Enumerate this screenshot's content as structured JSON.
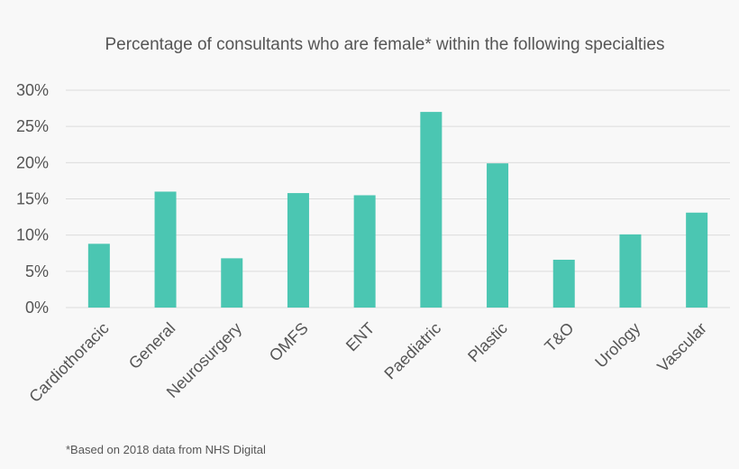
{
  "chart_data": {
    "type": "bar",
    "title": "Percentage of consultants who are female* within the following specialties",
    "categories": [
      "Cardiothoracic",
      "General",
      "Neurosurgery",
      "OMFS",
      "ENT",
      "Paediatric",
      "Plastic",
      "T&O",
      "Urology",
      "Vascular"
    ],
    "values": [
      8.8,
      16.0,
      6.8,
      15.8,
      15.5,
      27.0,
      19.9,
      6.6,
      10.1,
      13.1
    ],
    "ylim": [
      0,
      30
    ],
    "yticks": [
      0,
      5,
      10,
      15,
      20,
      25,
      30
    ],
    "ytick_labels": [
      "0%",
      "5%",
      "10%",
      "15%",
      "20%",
      "25%",
      "30%"
    ],
    "xlabel": "",
    "ylabel": "",
    "grid": "horizontal",
    "bar_color": "#4bc6b2",
    "footnote": "*Based on 2018 data from NHS Digital"
  }
}
